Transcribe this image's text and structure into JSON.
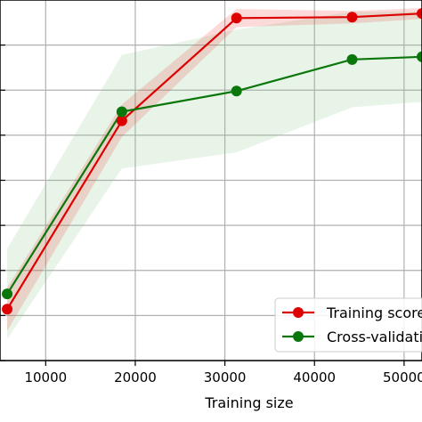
{
  "chart_data": {
    "type": "line",
    "title": "",
    "xlabel": "Training size",
    "ylabel": "",
    "xlim": [
      4900,
      52000
    ],
    "ylim": [
      0.6,
      1.0
    ],
    "xticks": [
      10000,
      20000,
      30000,
      40000,
      50000
    ],
    "xtick_labels": [
      "10000",
      "20000",
      "30000",
      "40000",
      "50000"
    ],
    "yticks": [
      0.6,
      0.65,
      0.7,
      0.75,
      0.8,
      0.85,
      0.9,
      0.95
    ],
    "grid": true,
    "legend_placement": "lower-right",
    "series": [
      {
        "name": "Training score",
        "color": "#dd0000",
        "band_color": "#e8302a",
        "x": [
          5700,
          18500,
          31300,
          44200,
          52000
        ],
        "y": [
          0.657,
          0.866,
          0.98,
          0.981,
          0.985
        ],
        "band": [
          0.024,
          0.018,
          0.01,
          0.007,
          0.006
        ]
      },
      {
        "name": "Cross-validation score",
        "color": "#0a770a",
        "band_color": "#8cc98c",
        "x": [
          5700,
          18500,
          31300,
          44200,
          52000
        ],
        "y": [
          0.674,
          0.876,
          0.899,
          0.934,
          0.937
        ],
        "band": [
          0.05,
          0.063,
          0.068,
          0.053,
          0.05
        ]
      }
    ]
  }
}
